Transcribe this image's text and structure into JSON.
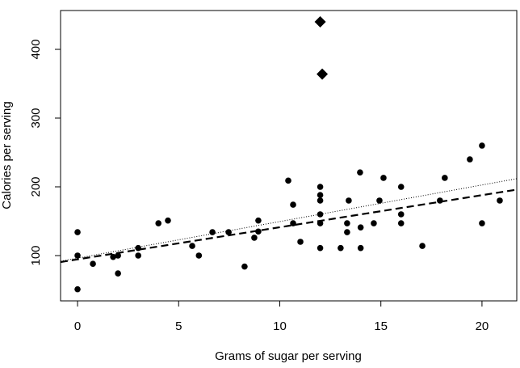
{
  "chart_data": {
    "type": "scatter",
    "xlabel": "Grams of sugar per serving",
    "ylabel": "Calories per serving",
    "xlim": [
      -0.84,
      21.72
    ],
    "ylim": [
      34.1,
      456.5
    ],
    "xticks": [
      0,
      5,
      10,
      15,
      20
    ],
    "yticks": [
      100,
      200,
      300,
      400
    ],
    "color": "#000000",
    "series": [
      {
        "marker": "circle",
        "x": [
          0,
          0,
          0,
          0.76,
          1.76,
          2,
          2,
          3,
          3,
          4,
          4.47,
          5.67,
          6,
          6.67,
          7.47,
          8.26,
          8.74,
          8.94,
          8.94,
          10.42,
          10.66,
          10.66,
          11.02,
          12,
          12,
          12,
          12,
          12,
          12,
          13.01,
          13.33,
          13.33,
          13.41,
          13.97,
          14,
          14,
          14.65,
          14.93,
          15.13,
          16,
          16,
          16,
          17.05,
          17.92,
          18.16,
          19.4,
          20,
          20,
          20.88
        ],
        "values": [
          134,
          100,
          51,
          88,
          98,
          100,
          74,
          111,
          100,
          147,
          151,
          114,
          100,
          134,
          134,
          84,
          126,
          135,
          151,
          209,
          174,
          147,
          120,
          200,
          188,
          180,
          160,
          147,
          111,
          111,
          147,
          134,
          180,
          221,
          141,
          111,
          147,
          180,
          213,
          200,
          160,
          147,
          114,
          180,
          213,
          240,
          260,
          147,
          180
        ]
      },
      {
        "marker": "diamond",
        "x": [
          12,
          12.1
        ],
        "values": [
          440,
          364
        ]
      }
    ],
    "fit_lines": [
      {
        "style": "dashed",
        "intercept": 94.5,
        "slope": 4.67
      },
      {
        "style": "dotted",
        "intercept": 96.3,
        "slope": 5.32
      }
    ]
  }
}
